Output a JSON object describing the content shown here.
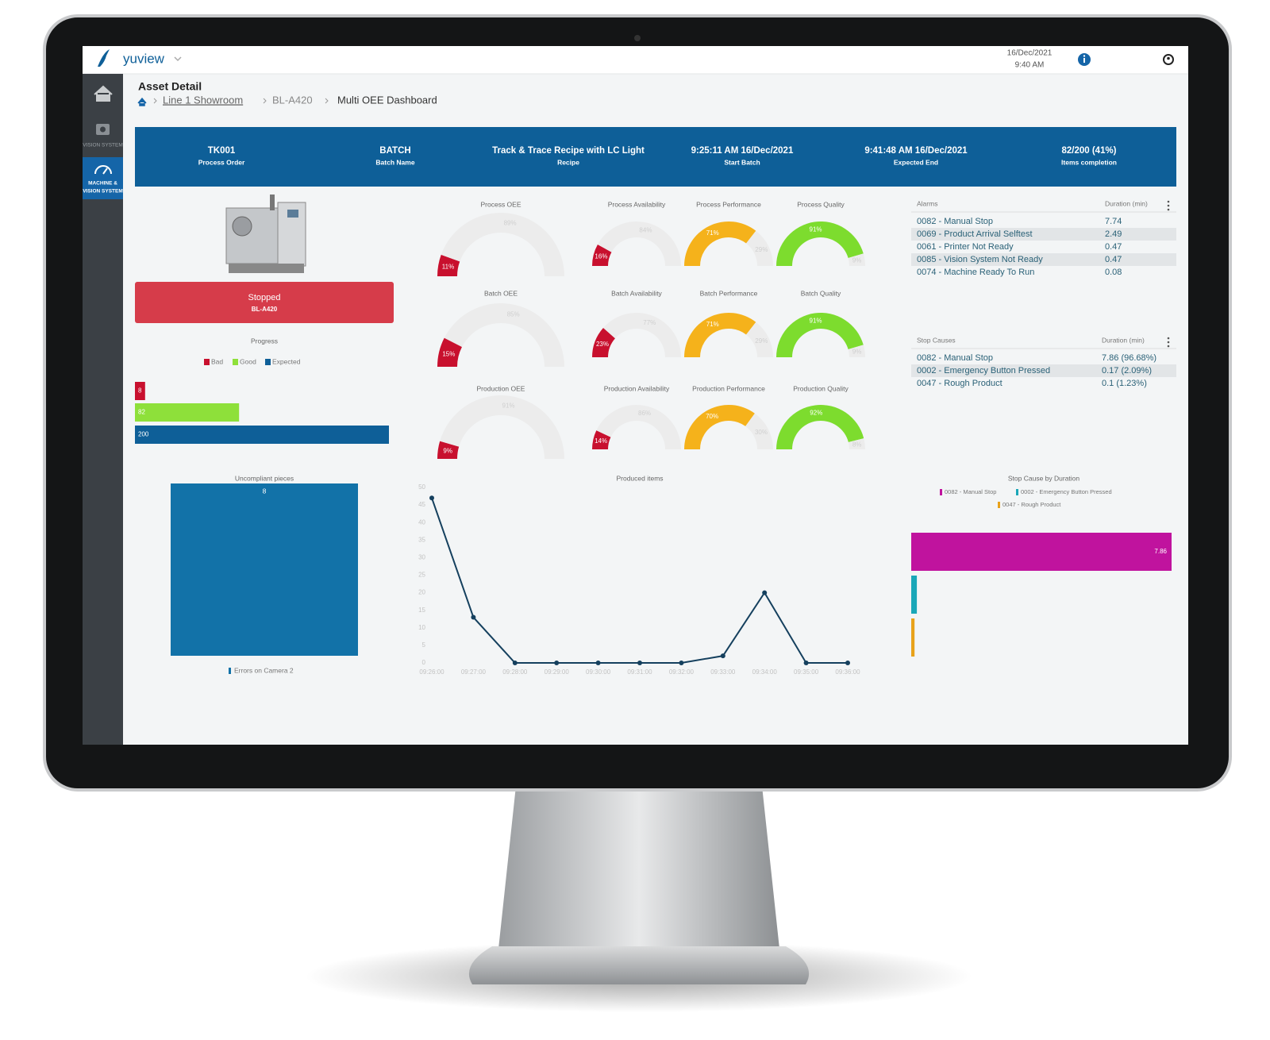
{
  "header": {
    "logo": "yuview",
    "date": "16/Dec/2021",
    "time": "9:40 AM"
  },
  "sidebar": {
    "items": [
      "VISION SYSTEM",
      "MACHINE &",
      "VISION SYSTEM"
    ]
  },
  "page": {
    "title": "Asset Detail",
    "breadcrumb": [
      "Line 1 Showroom",
      "BL-A420",
      "Multi OEE Dashboard"
    ]
  },
  "batch": [
    {
      "value": "TK001",
      "label": "Process Order"
    },
    {
      "value": "BATCH",
      "label": "Batch Name"
    },
    {
      "value": "Track & Trace Recipe with LC Light",
      "label": "Recipe"
    },
    {
      "value": "9:25:11 AM 16/Dec/2021",
      "label": "Start Batch"
    },
    {
      "value": "9:41:48 AM 16/Dec/2021",
      "label": "Expected End"
    },
    {
      "value": "82/200 (41%)",
      "label": "Items completion"
    }
  ],
  "status": {
    "state": "Stopped",
    "asset": "BL-A420"
  },
  "alarms": {
    "columns": [
      "Alarms",
      "Duration (min)"
    ],
    "rows": [
      [
        "0082 - Manual Stop",
        "7.74"
      ],
      [
        "0069 - Product Arrival Selftest",
        "2.49"
      ],
      [
        "0061 - Printer Not Ready",
        "0.47"
      ],
      [
        "0085 - Vision System Not Ready",
        "0.47"
      ],
      [
        "0074 - Machine Ready To Run",
        "0.08"
      ]
    ]
  },
  "stop_causes": {
    "columns": [
      "Stop Causes",
      "Duration (min)"
    ],
    "rows": [
      [
        "0082 - Manual Stop",
        "7.86 (96.68%)"
      ],
      [
        "0002 - Emergency Button Pressed",
        "0.17 (2.09%)"
      ],
      [
        "0047 - Rough Product",
        "0.1 (1.23%)"
      ]
    ]
  },
  "chart_data": [
    {
      "type": "bar",
      "orientation": "horizontal",
      "title": "Progress",
      "series": [
        {
          "name": "Bad",
          "color": "#c8102e",
          "values": [
            8
          ]
        },
        {
          "name": "Good",
          "color": "#8ee03a",
          "values": [
            82
          ]
        },
        {
          "name": "Expected",
          "color": "#0e5f98",
          "values": [
            200
          ]
        }
      ]
    },
    {
      "type": "gauge",
      "title": "Process OEE",
      "values": [
        11,
        89
      ],
      "value_labels": [
        "11%",
        "89%"
      ],
      "color": "#c8102e"
    },
    {
      "type": "gauge",
      "title": "Process Availability",
      "values": [
        16,
        84
      ],
      "value_labels": [
        "16%",
        "84%"
      ],
      "color": "#c8102e"
    },
    {
      "type": "gauge",
      "title": "Process Performance",
      "values": [
        71,
        29
      ],
      "value_labels": [
        "71%",
        "29%"
      ],
      "color": "#f5b21b"
    },
    {
      "type": "gauge",
      "title": "Process Quality",
      "values": [
        91,
        9
      ],
      "value_labels": [
        "91%",
        "9%"
      ],
      "color": "#7ddc2e"
    },
    {
      "type": "gauge",
      "title": "Batch OEE",
      "values": [
        15,
        85
      ],
      "value_labels": [
        "15%",
        "85%"
      ],
      "color": "#c8102e"
    },
    {
      "type": "gauge",
      "title": "Batch Availability",
      "values": [
        23,
        77
      ],
      "value_labels": [
        "23%",
        "77%"
      ],
      "color": "#c8102e"
    },
    {
      "type": "gauge",
      "title": "Batch Performance",
      "values": [
        71,
        29
      ],
      "value_labels": [
        "71%",
        "29%"
      ],
      "color": "#f5b21b"
    },
    {
      "type": "gauge",
      "title": "Batch Quality",
      "values": [
        91,
        9
      ],
      "value_labels": [
        "91%",
        "9%"
      ],
      "color": "#7ddc2e"
    },
    {
      "type": "gauge",
      "title": "Production OEE",
      "values": [
        9,
        91
      ],
      "value_labels": [
        "9%",
        "91%"
      ],
      "color": "#c8102e"
    },
    {
      "type": "gauge",
      "title": "Production Availability",
      "values": [
        14,
        86
      ],
      "value_labels": [
        "14%",
        "86%"
      ],
      "color": "#c8102e"
    },
    {
      "type": "gauge",
      "title": "Production Performance",
      "values": [
        70,
        30
      ],
      "value_labels": [
        "70%",
        "30%"
      ],
      "color": "#f5b21b"
    },
    {
      "type": "gauge",
      "title": "Production Quality",
      "values": [
        92,
        8
      ],
      "value_labels": [
        "92%",
        "8%"
      ],
      "color": "#7ddc2e"
    },
    {
      "type": "bar",
      "orientation": "vertical",
      "title": "Uncompliant pieces",
      "series": [
        {
          "name": "Errors on Camera 2",
          "color": "#1272a8",
          "values": [
            8
          ]
        }
      ]
    },
    {
      "type": "line",
      "title": "Produced items",
      "categories": [
        "09:26:00",
        "09:27:00",
        "09:28:00",
        "09:29:00",
        "09:30:00",
        "09:31:00",
        "09:32:00",
        "09:33:00",
        "09:34:00",
        "09:35:00",
        "09:36:00"
      ],
      "values": [
        47,
        13,
        0,
        0,
        0,
        0,
        0,
        2,
        20,
        0,
        0
      ],
      "color": "#15405e",
      "ylim": [
        0,
        50
      ],
      "yticks": [
        0,
        5,
        10,
        15,
        20,
        25,
        30,
        35,
        40,
        45,
        50
      ],
      "grid": false
    },
    {
      "type": "bar",
      "orientation": "horizontal",
      "title": "Stop Cause by Duration",
      "series": [
        {
          "name": "0082 - Manual Stop",
          "color": "#c0139e",
          "values": [
            7.86
          ]
        },
        {
          "name": "0002 - Emergency Button Pressed",
          "color": "#1aa7b8",
          "values": [
            0.17
          ]
        },
        {
          "name": "0047 - Rough Product",
          "color": "#e8a21a",
          "values": [
            0.1
          ]
        }
      ]
    }
  ]
}
